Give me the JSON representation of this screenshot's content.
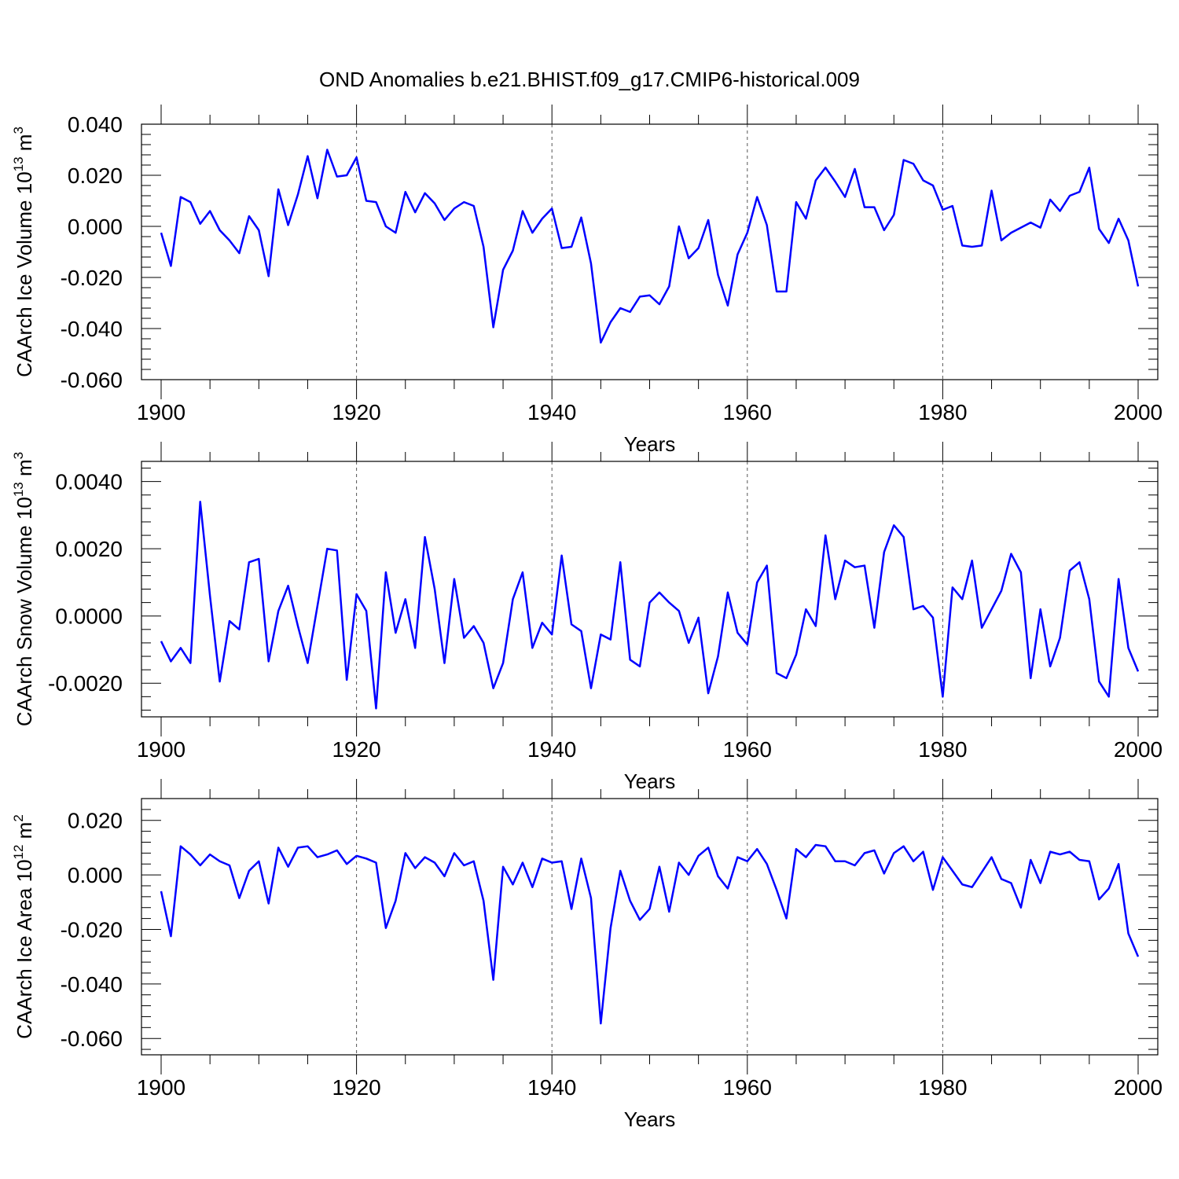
{
  "title": "OND Anomalies b.e21.BHIST.f09_g17.CMIP6-historical.009",
  "colors": {
    "series": "#0000ff",
    "axis": "#000000",
    "grid": "#555555"
  },
  "chart_data": [
    {
      "type": "line",
      "ylabel_main": "CAArch Ice Volume 10",
      "ylabel_exp": "13",
      "ylabel_unit": "m",
      "ylabel_unit_exp": "3",
      "xlabel": "Years",
      "xlim": [
        1900,
        2000
      ],
      "ylim": [
        -0.06,
        0.04
      ],
      "xticks": [
        1900,
        1920,
        1940,
        1960,
        1980,
        2000
      ],
      "xtick_labels": [
        "1900",
        "1920",
        "1940",
        "1960",
        "1980",
        "2000"
      ],
      "yticks": [
        -0.06,
        -0.04,
        -0.02,
        0.0,
        0.02,
        0.04
      ],
      "ytick_labels": [
        "-0.060",
        "-0.040",
        "-0.020",
        "0.000",
        "0.020",
        "0.040"
      ],
      "grid": "dashed vertical at major x ticks",
      "x_start": 1900,
      "values": [
        -0.0025,
        -0.0155,
        0.0115,
        0.0095,
        0.001,
        0.006,
        -0.0015,
        -0.0055,
        -0.0105,
        0.004,
        -0.0015,
        -0.0195,
        0.0145,
        0.0005,
        0.0125,
        0.0275,
        0.011,
        0.03,
        0.0195,
        0.02,
        0.027,
        0.01,
        0.0095,
        0.0,
        -0.0025,
        0.0135,
        0.0055,
        0.013,
        0.009,
        0.0025,
        0.007,
        0.0095,
        0.008,
        -0.008,
        -0.0395,
        -0.017,
        -0.0095,
        0.006,
        -0.0025,
        0.003,
        0.007,
        -0.0085,
        -0.008,
        0.0035,
        -0.0145,
        -0.0455,
        -0.0375,
        -0.032,
        -0.0335,
        -0.0275,
        -0.027,
        -0.0305,
        -0.0235,
        0.0,
        -0.0125,
        -0.0085,
        0.0025,
        -0.019,
        -0.031,
        -0.011,
        -0.0025,
        0.0115,
        0.0005,
        -0.0255,
        -0.0255,
        0.0095,
        0.003,
        0.018,
        0.023,
        0.0175,
        0.0115,
        0.0225,
        0.0075,
        0.0075,
        -0.0015,
        0.0045,
        0.026,
        0.0245,
        0.018,
        0.016,
        0.0065,
        0.008,
        -0.0075,
        -0.008,
        -0.0075,
        0.014,
        -0.0055,
        -0.0025,
        -0.0005,
        0.0015,
        -0.0005,
        0.0105,
        0.006,
        0.012,
        0.0135,
        0.023,
        -0.001,
        -0.0065,
        0.003,
        -0.0055,
        -0.0235
      ]
    },
    {
      "type": "line",
      "ylabel_main": "CAArch Snow Volume 10",
      "ylabel_exp": "13",
      "ylabel_unit": "m",
      "ylabel_unit_exp": "3",
      "xlabel": "Years",
      "xlim": [
        1900,
        2000
      ],
      "ylim": [
        -0.003,
        0.0046
      ],
      "xticks": [
        1900,
        1920,
        1940,
        1960,
        1980,
        2000
      ],
      "xtick_labels": [
        "1900",
        "1920",
        "1940",
        "1960",
        "1980",
        "2000"
      ],
      "yticks": [
        -0.002,
        0.0,
        0.002,
        0.004
      ],
      "ytick_labels": [
        "-0.0020",
        "0.0000",
        "0.0020",
        "0.0040"
      ],
      "grid": "dashed vertical at major x ticks",
      "x_start": 1900,
      "values": [
        -0.00075,
        -0.00135,
        -0.00095,
        -0.0014,
        0.0034,
        0.0006,
        -0.00195,
        -0.00015,
        -0.0004,
        0.0016,
        0.0017,
        -0.00135,
        0.00015,
        0.0009,
        -0.0003,
        -0.0014,
        0.0003,
        0.002,
        0.00195,
        -0.0019,
        0.00065,
        0.00015,
        -0.00275,
        0.0013,
        -0.0005,
        0.0005,
        -0.00095,
        0.00235,
        0.0008,
        -0.0014,
        0.0011,
        -0.00065,
        -0.0003,
        -0.0008,
        -0.00215,
        -0.0014,
        0.0005,
        0.0013,
        -0.00095,
        -0.0002,
        -0.00055,
        0.0018,
        -0.00025,
        -0.00045,
        -0.00215,
        -0.00055,
        -0.0007,
        0.0016,
        -0.0013,
        -0.0015,
        0.0004,
        0.0007,
        0.0004,
        0.00015,
        -0.0008,
        -5e-05,
        -0.0023,
        -0.0012,
        0.0007,
        -0.0005,
        -0.00085,
        0.001,
        0.0015,
        -0.0017,
        -0.00185,
        -0.00115,
        0.0002,
        -0.0003,
        0.0024,
        0.0005,
        0.00165,
        0.00145,
        0.0015,
        -0.00035,
        0.0019,
        0.0027,
        0.00235,
        0.0002,
        0.0003,
        -5e-05,
        -0.0024,
        0.00085,
        0.0005,
        0.00165,
        -0.00035,
        0.0002,
        0.00075,
        0.00185,
        0.0013,
        -0.00185,
        0.0002,
        -0.0015,
        -0.00065,
        0.00135,
        0.0016,
        0.0005,
        -0.00195,
        -0.0024,
        0.0011,
        -0.00095,
        -0.00165
      ]
    },
    {
      "type": "line",
      "ylabel_main": "CAArch Ice Area 10",
      "ylabel_exp": "12",
      "ylabel_unit": "m",
      "ylabel_unit_exp": "2",
      "xlabel": "Years",
      "xlim": [
        1900,
        2000
      ],
      "ylim": [
        -0.066,
        0.028
      ],
      "xticks": [
        1900,
        1920,
        1940,
        1960,
        1980,
        2000
      ],
      "xtick_labels": [
        "1900",
        "1920",
        "1940",
        "1960",
        "1980",
        "2000"
      ],
      "yticks": [
        -0.06,
        -0.04,
        -0.02,
        0.0,
        0.02
      ],
      "ytick_labels": [
        "-0.060",
        "-0.040",
        "-0.020",
        "0.000",
        "0.020"
      ],
      "grid": "dashed vertical at major x ticks",
      "x_start": 1900,
      "values": [
        -0.006,
        -0.0225,
        0.0105,
        0.0075,
        0.0035,
        0.0075,
        0.005,
        0.0035,
        -0.0085,
        0.0015,
        0.005,
        -0.0105,
        0.01,
        0.003,
        0.01,
        0.0105,
        0.0065,
        0.0075,
        0.009,
        0.004,
        0.007,
        0.006,
        0.0045,
        -0.0195,
        -0.0095,
        0.008,
        0.0025,
        0.0065,
        0.0045,
        -0.0005,
        0.008,
        0.0035,
        0.005,
        -0.0095,
        -0.0385,
        0.003,
        -0.0035,
        0.0045,
        -0.0045,
        0.006,
        0.0045,
        0.005,
        -0.0125,
        0.006,
        -0.0085,
        -0.0545,
        -0.0195,
        0.0015,
        -0.0095,
        -0.0165,
        -0.0125,
        0.003,
        -0.0135,
        0.0045,
        0.0,
        0.007,
        0.01,
        -0.0005,
        -0.005,
        0.0065,
        0.005,
        0.0095,
        0.004,
        -0.0055,
        -0.016,
        0.0095,
        0.0065,
        0.011,
        0.0105,
        0.005,
        0.005,
        0.0035,
        0.008,
        0.009,
        0.0005,
        0.008,
        0.0105,
        0.005,
        0.0085,
        -0.0055,
        0.0065,
        0.0015,
        -0.0035,
        -0.0045,
        0.001,
        0.0065,
        -0.0015,
        -0.003,
        -0.012,
        0.0055,
        -0.003,
        0.0085,
        0.0075,
        0.0085,
        0.0055,
        0.005,
        -0.009,
        -0.005,
        0.004,
        -0.0215,
        -0.03
      ]
    }
  ]
}
